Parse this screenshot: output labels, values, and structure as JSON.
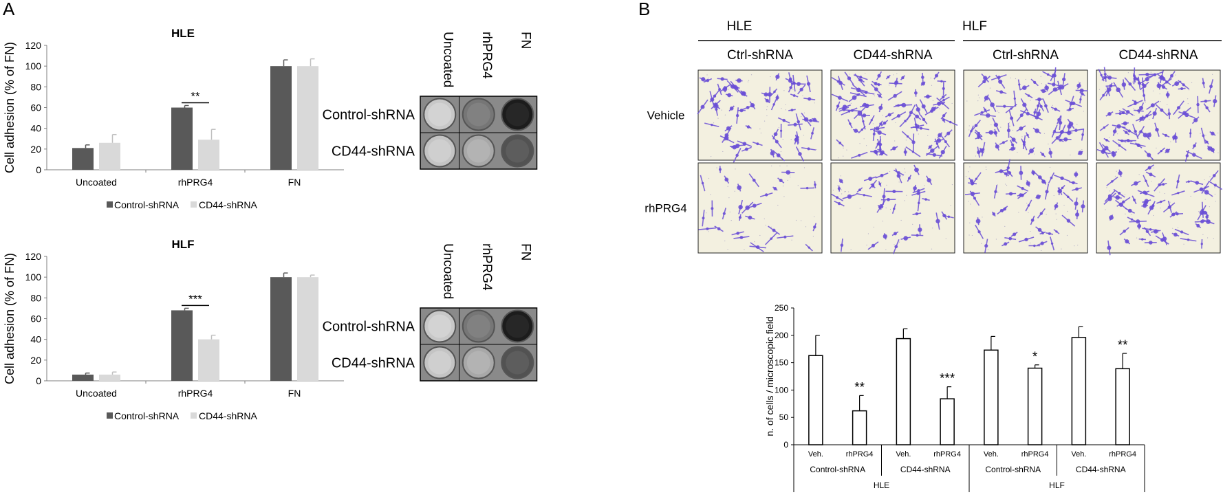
{
  "panels": {
    "a": "A",
    "b": "B"
  },
  "colors": {
    "dark": "#595959",
    "light": "#d9d9d9",
    "axis": "#7f7f7f",
    "violet": "#6a4fd6"
  },
  "adhesion_legend": {
    "dark": "Control-shRNA",
    "light": "CD44-shRNA"
  },
  "wells": {
    "columns": [
      "Uncoated",
      "rhPRG4",
      "FN"
    ],
    "rows": [
      "Control-shRNA",
      "CD44-shRNA"
    ]
  },
  "micro": {
    "groups": [
      "HLE",
      "HLF"
    ],
    "columns": [
      "Ctrl-shRNA",
      "CD44-shRNA",
      "Ctrl-shRNA",
      "CD44-shRNA"
    ],
    "rows": [
      "Vehicle",
      "rhPRG4"
    ]
  },
  "chart_data": [
    {
      "type": "bar",
      "title": "HLE",
      "ylabel": "Cell adhesion (% of FN)",
      "ylim": [
        0,
        120
      ],
      "yticks": [
        0,
        20,
        40,
        60,
        80,
        100,
        120
      ],
      "categories": [
        "Uncoated",
        "rhPRG4",
        "FN"
      ],
      "series": [
        {
          "name": "Control-shRNA",
          "values": [
            21,
            60,
            100
          ],
          "errors": [
            3,
            2,
            6
          ]
        },
        {
          "name": "CD44-shRNA",
          "values": [
            26,
            29,
            100
          ],
          "errors": [
            8,
            10,
            7
          ]
        }
      ],
      "annotations": [
        {
          "category": "rhPRG4",
          "text": "**"
        }
      ],
      "legend": "bottom"
    },
    {
      "type": "bar",
      "title": "HLF",
      "ylabel": "Cell adhesion (% of FN)",
      "ylim": [
        0,
        120
      ],
      "yticks": [
        0,
        20,
        40,
        60,
        80,
        100,
        120
      ],
      "categories": [
        "Uncoated",
        "rhPRG4",
        "FN"
      ],
      "series": [
        {
          "name": "Control-shRNA",
          "values": [
            6,
            68,
            100
          ],
          "errors": [
            1.5,
            2,
            4
          ]
        },
        {
          "name": "CD44-shRNA",
          "values": [
            6,
            40,
            100
          ],
          "errors": [
            2.5,
            4,
            2
          ]
        }
      ],
      "annotations": [
        {
          "category": "rhPRG4",
          "text": "***"
        }
      ],
      "legend": "bottom"
    },
    {
      "type": "bar",
      "ylabel": "n. of cells / microscopic field",
      "ylim": [
        0,
        250
      ],
      "yticks": [
        0,
        50,
        100,
        150,
        200,
        250
      ],
      "categories": [
        "Veh.",
        "rhPRG4",
        "Veh.",
        "rhPRG4",
        "Veh.",
        "rhPRG4",
        "Veh.",
        "rhPRG4"
      ],
      "values": [
        163,
        62,
        194,
        84,
        173,
        140,
        196,
        139
      ],
      "errors": [
        37,
        28,
        18,
        22,
        25,
        6,
        20,
        28
      ],
      "significance": [
        "",
        "**",
        "",
        "***",
        "",
        "*",
        "",
        "**"
      ],
      "subgroups": [
        "Control-shRNA",
        "CD44-shRNA",
        "Control-shRNA",
        "CD44-shRNA"
      ],
      "groups": [
        "HLE",
        "HLF"
      ]
    }
  ]
}
